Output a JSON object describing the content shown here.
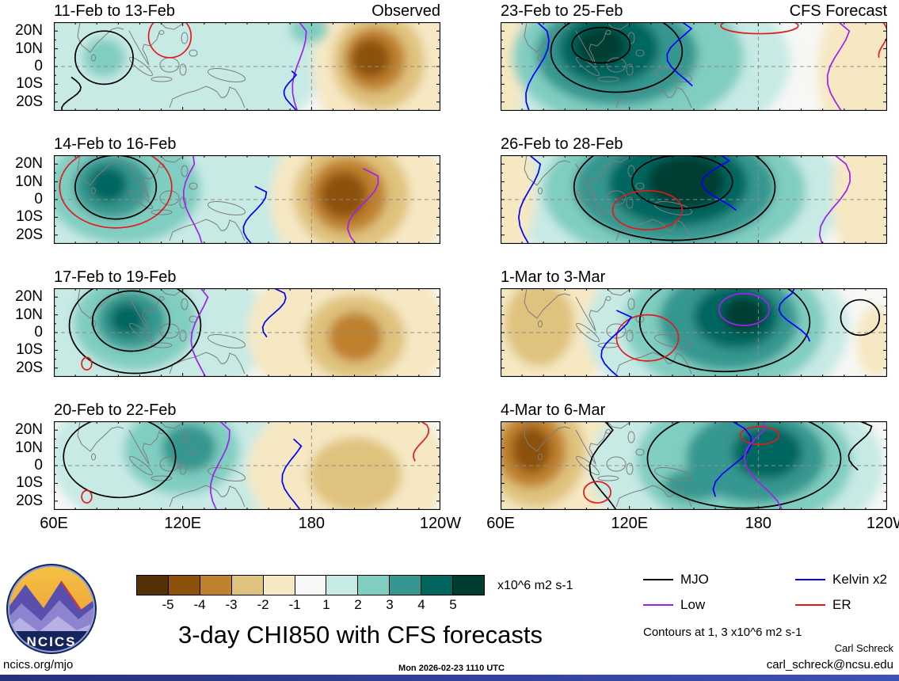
{
  "title": "3-day CHI850 with CFS forecasts",
  "logo": {
    "text": "NCICS"
  },
  "footer": {
    "site": "ncics.org/mjo",
    "timestamp": "Mon 2026-02-23 1110 UTC",
    "contour_note": "Contours at 1, 3 x10^6 m2 s-1",
    "author": "Carl Schreck",
    "email": "carl_schreck@ncsu.edu"
  },
  "colorbar": {
    "labels": [
      "-5",
      "-4",
      "-3",
      "-2",
      "-1",
      "1",
      "2",
      "3",
      "4",
      "5"
    ],
    "unit": "x10^6 m2 s-1",
    "palette": [
      "#543005",
      "#8c510a",
      "#bf812d",
      "#dfc27d",
      "#f6e8c3",
      "#f7f7f5",
      "#c7eae5",
      "#80cdc1",
      "#35978f",
      "#01665e",
      "#003c30"
    ]
  },
  "legend": {
    "items": [
      {
        "label": "MJO",
        "color": "#000000"
      },
      {
        "label": "Low",
        "color": "#a020f0"
      },
      {
        "label": "Kelvin x2",
        "color": "#0000ff"
      },
      {
        "label": "ER",
        "color": "#e31a1c"
      }
    ]
  },
  "chart_data": {
    "type": "heatmap",
    "title": "3-day CHI850 with CFS forecasts",
    "units": "x10^6 m2 s-1",
    "contour_levels": [
      1,
      3
    ],
    "x_ticks": [
      "60E",
      "120E",
      "180",
      "120W"
    ],
    "y_ticks": [
      "20N",
      "10N",
      "0",
      "10S",
      "20S"
    ],
    "x_domain_deg": [
      60,
      240
    ],
    "y_domain_deg": [
      25,
      -25
    ],
    "line_colors": {
      "mjo": "#000000",
      "low": "#a020f0",
      "kelvin": "#0000ff",
      "er": "#e31a1c"
    },
    "panels": [
      {
        "title": "11-Feb to 13-Feb",
        "corner": "Observed",
        "blobs": [
          {
            "x": 0.28,
            "y": 0.45,
            "rx": 0.42,
            "ry": 1.0,
            "lv": 1
          },
          {
            "x": 0.66,
            "y": 0.1,
            "rx": 0.09,
            "ry": 0.28,
            "lv": 1
          },
          {
            "x": 0.13,
            "y": 0.4,
            "rx": 0.055,
            "ry": 0.22,
            "lv": 2
          },
          {
            "x": 0.66,
            "y": 0.08,
            "rx": 0.05,
            "ry": 0.16,
            "lv": 2
          },
          {
            "x": 0.87,
            "y": 0.48,
            "rx": 0.2,
            "ry": 1.0,
            "lv": -1
          },
          {
            "x": 0.84,
            "y": 0.44,
            "rx": 0.12,
            "ry": 0.55,
            "lv": -2
          },
          {
            "x": 0.83,
            "y": 0.42,
            "rx": 0.08,
            "ry": 0.36,
            "lv": -3
          },
          {
            "x": 0.82,
            "y": 0.41,
            "rx": 0.05,
            "ry": 0.22,
            "lv": -4
          }
        ],
        "contours": [
          {
            "t": "e",
            "s": "mjo",
            "x": 0.13,
            "y": 0.4,
            "rx": 0.075,
            "ry": 0.3
          },
          {
            "t": "e",
            "s": "er",
            "x": 0.3,
            "y": 0.16,
            "rx": 0.055,
            "ry": 0.24
          },
          {
            "t": "v",
            "s": "low",
            "x": 0.635,
            "amp": 0.018,
            "ph": 1
          },
          {
            "t": "v",
            "s": "kelvin",
            "x": 0.615,
            "y1": 0.55,
            "y2": 1,
            "amp": 0.02,
            "ph": 2
          },
          {
            "t": "v",
            "s": "mjo",
            "x": 0.045,
            "y1": 0.62,
            "y2": 1,
            "amp": 0.025,
            "ph": 0
          }
        ]
      },
      {
        "title": "23-Feb to 25-Feb",
        "corner": "CFS Forecast",
        "blobs": [
          {
            "x": 0.35,
            "y": 0.45,
            "rx": 0.4,
            "ry": 1.0,
            "lv": 1
          },
          {
            "x": 0.33,
            "y": 0.4,
            "rx": 0.3,
            "ry": 0.8,
            "lv": 2
          },
          {
            "x": 0.3,
            "y": 0.36,
            "rx": 0.21,
            "ry": 0.58,
            "lv": 3
          },
          {
            "x": 0.28,
            "y": 0.3,
            "rx": 0.13,
            "ry": 0.4,
            "lv": 4
          },
          {
            "x": 0.26,
            "y": 0.27,
            "rx": 0.065,
            "ry": 0.22,
            "lv": 5
          },
          {
            "x": 0.01,
            "y": 0.5,
            "rx": 0.05,
            "ry": 0.9,
            "lv": -1
          },
          {
            "x": 0.93,
            "y": 0.55,
            "rx": 0.11,
            "ry": 0.85,
            "lv": -1
          }
        ],
        "contours": [
          {
            "t": "e",
            "s": "mjo",
            "x": 0.3,
            "y": 0.33,
            "rx": 0.17,
            "ry": 0.46
          },
          {
            "t": "e",
            "s": "mjo",
            "x": 0.26,
            "y": 0.26,
            "rx": 0.075,
            "ry": 0.2
          },
          {
            "t": "v",
            "s": "kelvin",
            "x": 0.095,
            "amp": 0.03,
            "ph": 0.5
          },
          {
            "t": "v",
            "s": "kelvin",
            "x": 0.47,
            "y1": 0,
            "y2": 0.72,
            "amp": 0.04,
            "ph": 2
          },
          {
            "t": "e",
            "s": "er",
            "x": 0.67,
            "y": 0.04,
            "rx": 0.1,
            "ry": 0.09
          },
          {
            "t": "v",
            "s": "er",
            "x": 0.99,
            "y1": 0,
            "y2": 0.4,
            "amp": 0.012,
            "ph": 0
          },
          {
            "t": "v",
            "s": "low",
            "x": 0.875,
            "amp": 0.03,
            "ph": 1.5
          }
        ]
      },
      {
        "title": "14-Feb to 16-Feb",
        "corner": "",
        "blobs": [
          {
            "x": 0.26,
            "y": 0.45,
            "rx": 0.4,
            "ry": 1.0,
            "lv": 1
          },
          {
            "x": 0.18,
            "y": 0.38,
            "rx": 0.2,
            "ry": 0.62,
            "lv": 2
          },
          {
            "x": 0.15,
            "y": 0.35,
            "rx": 0.1,
            "ry": 0.36,
            "lv": 3
          },
          {
            "x": 0.14,
            "y": 0.33,
            "rx": 0.05,
            "ry": 0.2,
            "lv": 4
          },
          {
            "x": 0.79,
            "y": 0.5,
            "rx": 0.23,
            "ry": 0.95,
            "lv": -1
          },
          {
            "x": 0.77,
            "y": 0.46,
            "rx": 0.15,
            "ry": 0.62,
            "lv": -2
          },
          {
            "x": 0.76,
            "y": 0.45,
            "rx": 0.1,
            "ry": 0.42,
            "lv": -3
          },
          {
            "x": 0.75,
            "y": 0.45,
            "rx": 0.06,
            "ry": 0.26,
            "lv": -4
          }
        ],
        "contours": [
          {
            "t": "e",
            "s": "mjo",
            "x": 0.16,
            "y": 0.36,
            "rx": 0.105,
            "ry": 0.36
          },
          {
            "t": "e",
            "s": "er",
            "x": 0.16,
            "y": 0.36,
            "rx": 0.145,
            "ry": 0.46
          },
          {
            "t": "v",
            "s": "low",
            "x": 0.36,
            "amp": 0.025,
            "ph": 2.5
          },
          {
            "t": "v",
            "s": "kelvin",
            "x": 0.52,
            "y1": 0.35,
            "y2": 1,
            "amp": 0.03,
            "ph": 1
          },
          {
            "t": "v",
            "s": "low",
            "x": 0.8,
            "y1": 0.15,
            "y2": 1,
            "amp": 0.04,
            "ph": 0.8
          }
        ]
      },
      {
        "title": "26-Feb to 28-Feb",
        "corner": "",
        "blobs": [
          {
            "x": 0.45,
            "y": 0.45,
            "rx": 0.44,
            "ry": 1.0,
            "lv": 1
          },
          {
            "x": 0.45,
            "y": 0.4,
            "rx": 0.34,
            "ry": 0.82,
            "lv": 2
          },
          {
            "x": 0.45,
            "y": 0.36,
            "rx": 0.26,
            "ry": 0.64,
            "lv": 3
          },
          {
            "x": 0.46,
            "y": 0.32,
            "rx": 0.18,
            "ry": 0.48,
            "lv": 4
          },
          {
            "x": 0.48,
            "y": 0.3,
            "rx": 0.1,
            "ry": 0.3,
            "lv": 5
          },
          {
            "x": 0.02,
            "y": 0.4,
            "rx": 0.07,
            "ry": 0.75,
            "lv": -1
          },
          {
            "x": 0.95,
            "y": 0.5,
            "rx": 0.09,
            "ry": 0.85,
            "lv": -1
          }
        ],
        "contours": [
          {
            "t": "e",
            "s": "mjo",
            "x": 0.45,
            "y": 0.36,
            "rx": 0.26,
            "ry": 0.6
          },
          {
            "t": "e",
            "s": "mjo",
            "x": 0.47,
            "y": 0.3,
            "rx": 0.13,
            "ry": 0.3
          },
          {
            "t": "v",
            "s": "kelvin",
            "x": 0.075,
            "amp": 0.028,
            "ph": 1.2
          },
          {
            "t": "v",
            "s": "kelvin",
            "x": 0.57,
            "y1": 0,
            "y2": 0.62,
            "amp": 0.05,
            "ph": 2.2
          },
          {
            "t": "e",
            "s": "er",
            "x": 0.38,
            "y": 0.62,
            "rx": 0.09,
            "ry": 0.22
          },
          {
            "t": "v",
            "s": "low",
            "x": 0.865,
            "amp": 0.04,
            "ph": 0.3
          }
        ]
      },
      {
        "title": "17-Feb to 19-Feb",
        "corner": "",
        "blobs": [
          {
            "x": 0.22,
            "y": 0.45,
            "rx": 0.33,
            "ry": 1.0,
            "lv": 1
          },
          {
            "x": 0.21,
            "y": 0.38,
            "rx": 0.16,
            "ry": 0.55,
            "lv": 2
          },
          {
            "x": 0.2,
            "y": 0.36,
            "rx": 0.09,
            "ry": 0.33,
            "lv": 3
          },
          {
            "x": 0.19,
            "y": 0.35,
            "rx": 0.045,
            "ry": 0.18,
            "lv": 4
          },
          {
            "x": 0.76,
            "y": 0.5,
            "rx": 0.26,
            "ry": 0.9,
            "lv": -1
          },
          {
            "x": 0.78,
            "y": 0.55,
            "rx": 0.13,
            "ry": 0.48,
            "lv": -2
          },
          {
            "x": 0.78,
            "y": 0.55,
            "rx": 0.07,
            "ry": 0.28,
            "lv": -3
          }
        ],
        "contours": [
          {
            "t": "e",
            "s": "mjo",
            "x": 0.2,
            "y": 0.37,
            "rx": 0.1,
            "ry": 0.34
          },
          {
            "t": "e",
            "s": "mjo",
            "x": 0.21,
            "y": 0.42,
            "rx": 0.17,
            "ry": 0.54
          },
          {
            "t": "e",
            "s": "er",
            "x": 0.085,
            "y": 0.85,
            "rx": 0.013,
            "ry": 0.07
          },
          {
            "t": "v",
            "s": "low",
            "x": 0.38,
            "amp": 0.025,
            "ph": 1.8
          },
          {
            "t": "v",
            "s": "kelvin",
            "x": 0.57,
            "y1": 0,
            "y2": 0.55,
            "amp": 0.03,
            "ph": 0.6
          }
        ]
      },
      {
        "title": "1-Mar to 3-Mar",
        "corner": "",
        "blobs": [
          {
            "x": 0.11,
            "y": 0.45,
            "rx": 0.17,
            "ry": 0.85,
            "lv": -1
          },
          {
            "x": 0.1,
            "y": 0.4,
            "rx": 0.09,
            "ry": 0.48,
            "lv": -2
          },
          {
            "x": 0.56,
            "y": 0.45,
            "rx": 0.34,
            "ry": 1.0,
            "lv": 1
          },
          {
            "x": 0.58,
            "y": 0.4,
            "rx": 0.26,
            "ry": 0.78,
            "lv": 2
          },
          {
            "x": 0.59,
            "y": 0.36,
            "rx": 0.18,
            "ry": 0.56,
            "lv": 3
          },
          {
            "x": 0.61,
            "y": 0.32,
            "rx": 0.11,
            "ry": 0.36,
            "lv": 4
          },
          {
            "x": 0.63,
            "y": 0.3,
            "rx": 0.055,
            "ry": 0.2,
            "lv": 5
          },
          {
            "x": 0.97,
            "y": 0.6,
            "rx": 0.05,
            "ry": 0.4,
            "lv": -1
          }
        ],
        "contours": [
          {
            "t": "e",
            "s": "mjo",
            "x": 0.58,
            "y": 0.38,
            "rx": 0.22,
            "ry": 0.56
          },
          {
            "t": "e",
            "s": "mjo",
            "x": 0.93,
            "y": 0.33,
            "rx": 0.05,
            "ry": 0.2
          },
          {
            "t": "e",
            "s": "low",
            "x": 0.63,
            "y": 0.24,
            "rx": 0.065,
            "ry": 0.18
          },
          {
            "t": "e",
            "s": "er",
            "x": 0.38,
            "y": 0.56,
            "rx": 0.08,
            "ry": 0.26
          },
          {
            "t": "v",
            "s": "kelvin",
            "x": 0.3,
            "y1": 0.25,
            "y2": 1,
            "amp": 0.04,
            "ph": 1.4
          },
          {
            "t": "v",
            "s": "kelvin",
            "x": 0.76,
            "y1": 0,
            "y2": 0.6,
            "amp": 0.04,
            "ph": 2.8
          }
        ]
      },
      {
        "title": "20-Feb to 22-Feb",
        "corner": "",
        "blobs": [
          {
            "x": 0.3,
            "y": 0.4,
            "rx": 0.31,
            "ry": 0.9,
            "lv": 1
          },
          {
            "x": 0.33,
            "y": 0.33,
            "rx": 0.15,
            "ry": 0.5,
            "lv": 2
          },
          {
            "x": 0.35,
            "y": 0.3,
            "rx": 0.07,
            "ry": 0.27,
            "lv": 3
          },
          {
            "x": 0.76,
            "y": 0.55,
            "rx": 0.26,
            "ry": 0.85,
            "lv": -1
          },
          {
            "x": 0.78,
            "y": 0.6,
            "rx": 0.12,
            "ry": 0.42,
            "lv": -2
          }
        ],
        "contours": [
          {
            "t": "e",
            "s": "mjo",
            "x": 0.17,
            "y": 0.4,
            "rx": 0.145,
            "ry": 0.46
          },
          {
            "t": "v",
            "s": "low",
            "x": 0.43,
            "amp": 0.025,
            "ph": 0.9
          },
          {
            "t": "v",
            "s": "kelvin",
            "x": 0.62,
            "y1": 0.2,
            "y2": 1,
            "amp": 0.03,
            "ph": 1.9
          },
          {
            "t": "v",
            "s": "er",
            "x": 0.95,
            "y1": 0,
            "y2": 0.45,
            "amp": 0.02,
            "ph": 0.4
          },
          {
            "t": "e",
            "s": "er",
            "x": 0.085,
            "y": 0.85,
            "rx": 0.013,
            "ry": 0.07
          }
        ]
      },
      {
        "title": "4-Mar to 6-Mar",
        "corner": "",
        "blobs": [
          {
            "x": 0.1,
            "y": 0.4,
            "rx": 0.2,
            "ry": 0.95,
            "lv": -1
          },
          {
            "x": 0.09,
            "y": 0.35,
            "rx": 0.13,
            "ry": 0.62,
            "lv": -2
          },
          {
            "x": 0.08,
            "y": 0.33,
            "rx": 0.09,
            "ry": 0.42,
            "lv": -3
          },
          {
            "x": 0.08,
            "y": 0.32,
            "rx": 0.05,
            "ry": 0.26,
            "lv": -4
          },
          {
            "x": 0.61,
            "y": 0.5,
            "rx": 0.38,
            "ry": 1.0,
            "lv": 1
          },
          {
            "x": 0.63,
            "y": 0.45,
            "rx": 0.28,
            "ry": 0.78,
            "lv": 2
          },
          {
            "x": 0.66,
            "y": 0.4,
            "rx": 0.18,
            "ry": 0.52,
            "lv": 3
          },
          {
            "x": 0.5,
            "y": 0.72,
            "rx": 0.08,
            "ry": 0.18,
            "lv": 3
          },
          {
            "x": 0.69,
            "y": 0.35,
            "rx": 0.09,
            "ry": 0.3,
            "lv": 4
          }
        ],
        "contours": [
          {
            "t": "e",
            "s": "mjo",
            "x": 0.63,
            "y": 0.42,
            "rx": 0.25,
            "ry": 0.56
          },
          {
            "t": "v",
            "s": "mjo",
            "x": 0.27,
            "amp": 0.04,
            "ph": 2.1
          },
          {
            "t": "v",
            "s": "mjo",
            "x": 0.93,
            "y1": 0,
            "y2": 0.55,
            "amp": 0.03,
            "ph": 1.1
          },
          {
            "t": "e",
            "s": "er",
            "x": 0.25,
            "y": 0.8,
            "rx": 0.035,
            "ry": 0.12
          },
          {
            "t": "e",
            "s": "er",
            "x": 0.67,
            "y": 0.16,
            "rx": 0.05,
            "ry": 0.1
          },
          {
            "t": "v",
            "s": "kelvin",
            "x": 0.6,
            "y1": 0,
            "y2": 0.85,
            "amp": 0.05,
            "ph": 0.2
          },
          {
            "t": "v",
            "s": "low",
            "x": 0.68,
            "amp": 0.05,
            "ph": 2.6
          }
        ]
      }
    ]
  }
}
